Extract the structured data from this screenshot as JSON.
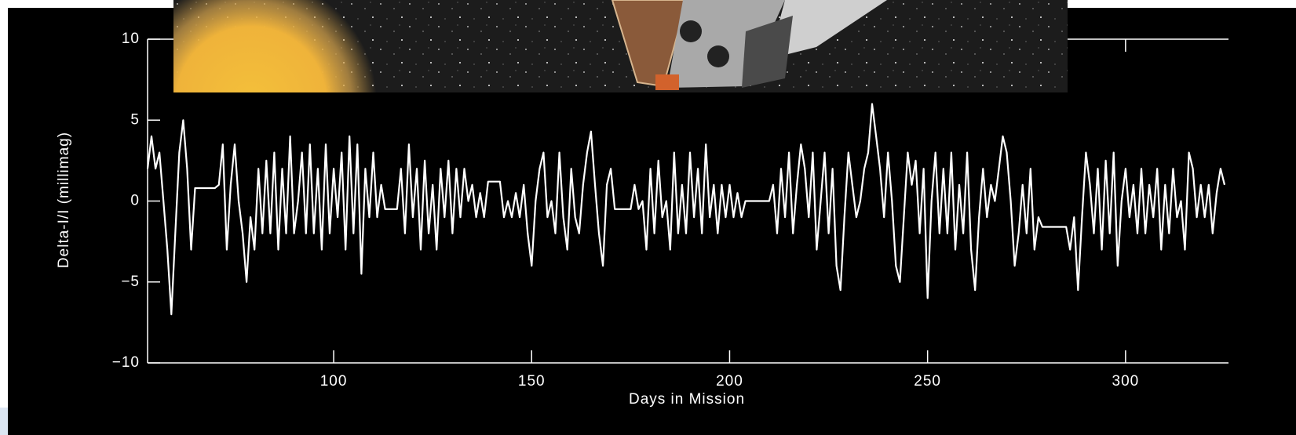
{
  "chart_data": {
    "type": "line",
    "y_label": "Delta-I/I (millimag)",
    "x_label": "Days in Mission",
    "xlim": [
      53,
      326
    ],
    "xticks": [
      100,
      150,
      200,
      250,
      300
    ],
    "ylim": [
      -10,
      10
    ],
    "yticks": [
      {
        "value": -10,
        "label": "−10"
      },
      {
        "value": -5,
        "label": "−5"
      },
      0,
      5,
      10
    ],
    "series": [
      {
        "color": "#ffffff",
        "x": [
          53,
          54,
          55,
          56,
          57,
          58,
          59,
          60,
          61,
          62,
          63,
          64,
          65,
          70,
          71,
          72,
          73,
          74,
          75,
          76,
          77,
          78,
          79,
          80,
          81,
          82,
          83,
          84,
          85,
          86,
          87,
          88,
          89,
          90,
          91,
          92,
          93,
          94,
          95,
          96,
          97,
          98,
          99,
          100,
          101,
          102,
          103,
          104,
          105,
          106,
          107,
          108,
          109,
          110,
          111,
          112,
          113,
          116,
          117,
          118,
          119,
          120,
          121,
          122,
          123,
          124,
          125,
          126,
          127,
          128,
          129,
          130,
          131,
          132,
          133,
          134,
          135,
          136,
          137,
          138,
          139,
          142,
          143,
          144,
          145,
          146,
          147,
          148,
          149,
          150,
          151,
          152,
          153,
          154,
          155,
          156,
          157,
          158,
          159,
          160,
          161,
          162,
          163,
          164,
          165,
          166,
          167,
          168,
          169,
          170,
          171,
          172,
          173,
          174,
          175,
          176,
          177,
          178,
          179,
          180,
          181,
          182,
          183,
          184,
          185,
          186,
          187,
          188,
          189,
          190,
          191,
          192,
          193,
          194,
          195,
          196,
          197,
          198,
          199,
          200,
          201,
          202,
          203,
          204,
          210,
          211,
          212,
          213,
          214,
          215,
          216,
          217,
          218,
          219,
          220,
          221,
          222,
          223,
          224,
          225,
          226,
          227,
          228,
          229,
          230,
          231,
          232,
          233,
          234,
          235,
          236,
          237,
          238,
          239,
          240,
          241,
          242,
          243,
          244,
          245,
          246,
          247,
          248,
          249,
          250,
          251,
          252,
          253,
          254,
          255,
          256,
          257,
          258,
          259,
          260,
          261,
          262,
          263,
          264,
          265,
          266,
          267,
          268,
          269,
          270,
          271,
          272,
          273,
          274,
          275,
          276,
          277,
          278,
          279,
          285,
          286,
          287,
          288,
          289,
          290,
          291,
          292,
          293,
          294,
          295,
          296,
          297,
          298,
          299,
          300,
          301,
          302,
          303,
          304,
          305,
          306,
          307,
          308,
          309,
          310,
          311,
          312,
          313,
          314,
          315,
          316,
          317,
          318,
          319,
          320,
          321,
          322,
          323,
          324,
          325
        ],
        "values": [
          2,
          4,
          2,
          3,
          0,
          -3,
          -7,
          -2,
          3,
          5,
          2,
          -3,
          0.8,
          0.8,
          1,
          3.5,
          -3,
          1,
          3.5,
          0,
          -2,
          -5,
          -1,
          -3,
          2,
          -2,
          2.5,
          -2,
          3,
          -3,
          2,
          -2,
          4,
          -2,
          0,
          3,
          -2,
          3.5,
          -2,
          2,
          -3,
          3.5,
          -2,
          2,
          -1,
          3,
          -3,
          4,
          -2,
          3.5,
          -4.5,
          2,
          -1,
          3,
          -1,
          1,
          -0.5,
          -0.5,
          2,
          -2,
          3.5,
          -1,
          2,
          -3,
          2.5,
          -2,
          1,
          -3,
          2,
          -1,
          2.5,
          -2,
          2,
          -1,
          2,
          0,
          1,
          -1,
          0.5,
          -1,
          1.2,
          1.2,
          -1,
          0,
          -1,
          0.5,
          -1,
          1,
          -2,
          -4,
          0,
          2,
          3,
          -1,
          0,
          -2,
          3,
          -1,
          -3,
          2,
          -1,
          -2,
          1,
          3,
          4.3,
          1,
          -2,
          -4,
          1,
          2,
          -0.5,
          -0.5,
          -0.5,
          -0.5,
          -0.5,
          1,
          -0.5,
          0,
          -3,
          2,
          -2,
          2.5,
          -1,
          0,
          -3,
          3,
          -2,
          1,
          -2,
          3,
          -1,
          2,
          -2,
          3.5,
          -1,
          1,
          -2,
          1,
          -1,
          1,
          -1,
          0.5,
          -1,
          0,
          0,
          1,
          -2,
          2,
          -1,
          3,
          -2,
          1,
          3.5,
          2,
          -1,
          3,
          -3,
          0,
          3,
          -2,
          2,
          -4,
          -5.5,
          -1,
          3,
          1,
          -1,
          0,
          2,
          3,
          6,
          4,
          2,
          -1,
          3,
          0,
          -4,
          -5,
          -1,
          3,
          1,
          2.5,
          -2,
          2,
          -6,
          0,
          3,
          -2,
          2,
          -2,
          3,
          -3,
          1,
          -2,
          3,
          -3,
          -5.5,
          -1,
          2,
          -1,
          1,
          0,
          2,
          4,
          3,
          0,
          -4,
          -2,
          1,
          -2,
          2,
          -3,
          -1,
          -1.6,
          -1.6,
          -3,
          -1,
          -5.5,
          -1,
          3,
          1,
          -2,
          2,
          -3,
          2.5,
          -2,
          3,
          -4,
          0,
          2,
          -1,
          1,
          -2,
          2,
          -2,
          1,
          -1,
          2,
          -3,
          1,
          -2,
          2,
          -1,
          0,
          -3,
          3,
          2,
          -1,
          1,
          -1,
          1,
          -2,
          0.5,
          2,
          1
        ]
      }
    ]
  }
}
